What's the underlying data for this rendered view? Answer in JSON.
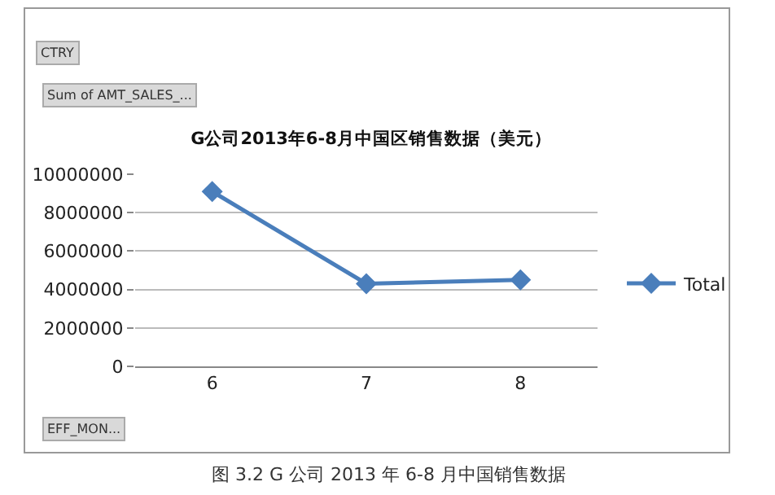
{
  "chart_data": {
    "type": "line",
    "title": "G公司2013年6-8月中国区销售数据（美元）",
    "categories": [
      "6",
      "7",
      "8"
    ],
    "series": [
      {
        "name": "Total",
        "color": "#4a7ebb",
        "values": [
          9100000,
          4300000,
          4500000
        ]
      }
    ],
    "ylim": [
      0,
      10000000
    ],
    "yticks": [
      0,
      2000000,
      4000000,
      6000000,
      8000000,
      10000000
    ],
    "grid": "y",
    "legend": "right",
    "marker": "diamond",
    "line_style": "solid",
    "annotations": [
      "CTRY",
      "Sum of AMT_SALES_...",
      "EFF_MON...",
      "图 3.2 G 公司 2013 年 6-8 月中国销售数据"
    ]
  }
}
